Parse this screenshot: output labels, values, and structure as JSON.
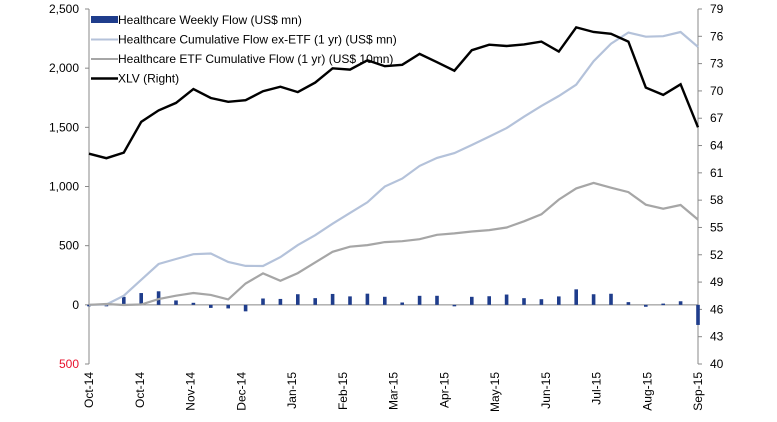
{
  "chart_data": {
    "type": "bar+line",
    "title": "",
    "xlabel": "",
    "ylabel_left": "",
    "ylabel_right": "",
    "x_tick_labels": [
      "Oct-14",
      "Oct-14",
      "Nov-14",
      "Dec-14",
      "Jan-15",
      "Feb-15",
      "Mar-15",
      "Apr-15",
      "May-15",
      "Jun-15",
      "Jul-15",
      "Aug-15",
      "Sep-15"
    ],
    "left_axis": {
      "min": -500,
      "max": 2500,
      "ticks": [
        "2,500",
        "2,000",
        "1,500",
        "1,000",
        "500",
        "0",
        "500"
      ],
      "tick_values": [
        2500,
        2000,
        1500,
        1000,
        500,
        0,
        -500
      ],
      "negative_label_color": "#e8112d"
    },
    "right_axis": {
      "min": 40,
      "max": 79,
      "ticks": [
        "79",
        "76",
        "73",
        "70",
        "67",
        "64",
        "61",
        "58",
        "55",
        "52",
        "49",
        "46",
        "43",
        "40"
      ],
      "tick_values": [
        79,
        76,
        73,
        70,
        67,
        64,
        61,
        58,
        55,
        52,
        49,
        46,
        43,
        40
      ]
    },
    "grid": false,
    "legend_position": "top-left",
    "n_points": 36,
    "series": [
      {
        "name": "Healthcare Weekly Flow (US$ mn)",
        "type": "bar",
        "axis": "left",
        "color": "#1f3d8c",
        "values": [
          -10,
          5,
          -15,
          70,
          95,
          105,
          115,
          35,
          40,
          15,
          30,
          -110,
          -20,
          10,
          -165,
          90,
          55,
          40,
          100,
          55,
          60,
          100,
          70,
          75,
          100,
          95,
          -10,
          30,
          75,
          80,
          75,
          -15,
          30,
          85,
          65,
          110
        ]
      },
      {
        "name": "Healthcare Cumulative Flow ex-ETF (1 yr) (US$ mn)",
        "type": "line",
        "axis": "left",
        "color": "#b4c2da",
        "values": [
          0,
          20,
          -15,
          80,
          170,
          260,
          350,
          370,
          410,
          430,
          470,
          380,
          360,
          370,
          260,
          340,
          390,
          430,
          520,
          570,
          630,
          700,
          760,
          820,
          880,
          990,
          1030,
          1080,
          1160,
          1220,
          1250,
          1270,
          1330,
          1360,
          1410,
          1480
        ]
      },
      {
        "name": "Healthcare ETF Cumulative Flow (1 yr) (US$ 10mn)",
        "type": "line",
        "axis": "left",
        "color": "#a6a6a6",
        "values": [
          0,
          70,
          -60,
          0,
          -20,
          30,
          50,
          60,
          100,
          100,
          80,
          90,
          40,
          180,
          180,
          280,
          200,
          210,
          280,
          340,
          400,
          460,
          480,
          520,
          500,
          520,
          560,
          530,
          550,
          570,
          600,
          600,
          620,
          620,
          630,
          640
        ]
      },
      {
        "name": "XLV (Right)",
        "type": "line",
        "axis": "right",
        "color": "#000000",
        "values": [
          63.1,
          64.6,
          60.5,
          63.3,
          66.0,
          67.3,
          67.9,
          68.3,
          69.2,
          70.3,
          69.5,
          68.8,
          68.8,
          68.5,
          69.8,
          70.0,
          70.6,
          70.2,
          69.8,
          70.6,
          71.6,
          72.7,
          72.8,
          71.2,
          74.0,
          73.0,
          71.9,
          73.2,
          74.0,
          74.3,
          72.7,
          72.0,
          73.1,
          75.1,
          75.1,
          75.0
        ]
      }
    ],
    "tail_series": {
      "weekly_flow": [
        75,
        60,
        35,
        55,
        70,
        80,
        165,
        90,
        85,
        100,
        30,
        -95,
        50,
        10,
        25,
        35,
        -170
      ],
      "cum_ex_etf": [
        1500,
        1580,
        1650,
        1700,
        1760,
        1800,
        1900,
        2050,
        2150,
        2250,
        2300,
        2320,
        2220,
        2270,
        2280,
        2330,
        2180
      ],
      "cum_etf": [
        660,
        700,
        740,
        780,
        880,
        960,
        1000,
        1030,
        1030,
        960,
        960,
        830,
        860,
        810,
        880,
        810,
        720
      ],
      "xlv": [
        74.9,
        75.0,
        75.8,
        75.2,
        74.0,
        76.8,
        77.1,
        76.4,
        77.3,
        75.5,
        75.7,
        70.8,
        70.0,
        69.5,
        71.7,
        69.8,
        66.0
      ]
    },
    "legend": [
      {
        "label": "Healthcare Weekly Flow (US$ mn)",
        "style": "bar",
        "color": "#1f3d8c"
      },
      {
        "label": "Healthcare Cumulative Flow ex-ETF (1 yr) (US$ mn)",
        "style": "line",
        "color": "#b4c2da"
      },
      {
        "label": "Healthcare ETF Cumulative Flow (1 yr) (US$ 10mn)",
        "style": "line",
        "color": "#a6a6a6"
      },
      {
        "label": "XLV (Right)",
        "style": "line",
        "color": "#000000"
      }
    ]
  }
}
